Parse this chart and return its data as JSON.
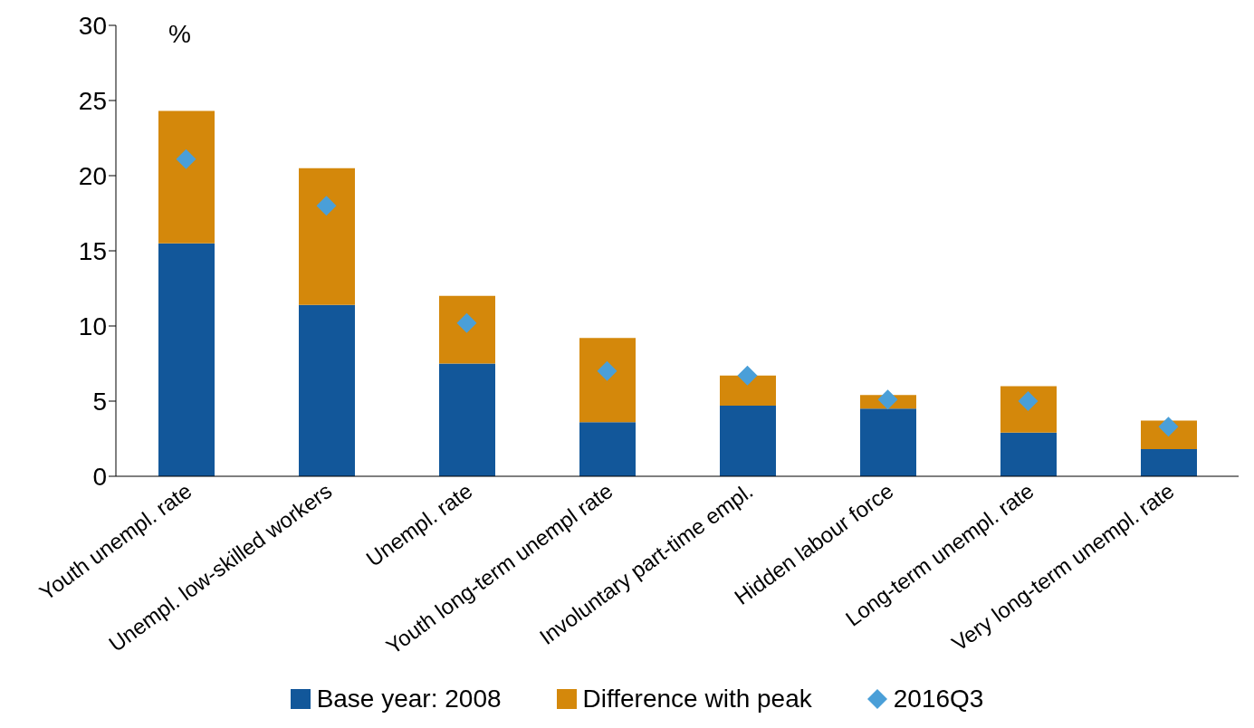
{
  "chart_data": {
    "type": "bar",
    "stacked": true,
    "ylabel": "%",
    "categories": [
      "Youth unempl. rate",
      "Unempl. low-skilled workers",
      "Unempl. rate",
      "Youth long-term unempl rate",
      "Involuntary part-time empl.",
      "Hidden labour force",
      "Long-term unempl. rate",
      "Very long-term unempl. rate"
    ],
    "series": [
      {
        "name": "Base year: 2008",
        "color": "#12579a",
        "values": [
          15.5,
          11.4,
          7.5,
          3.6,
          4.7,
          4.5,
          2.9,
          1.8
        ]
      },
      {
        "name": "Difference with peak",
        "color": "#d4880b",
        "values": [
          8.8,
          9.1,
          4.5,
          5.6,
          2.0,
          0.9,
          3.1,
          1.9
        ]
      },
      {
        "name": "2016Q3",
        "type": "scatter",
        "marker": "diamond",
        "color": "#4a9fd8",
        "values": [
          21.1,
          18.0,
          10.2,
          7.0,
          6.7,
          5.1,
          5.0,
          3.3
        ]
      }
    ],
    "ylim": [
      0,
      30
    ],
    "yticks": [
      0,
      5,
      10,
      15,
      20,
      25,
      30
    ],
    "legend": "bottom"
  }
}
